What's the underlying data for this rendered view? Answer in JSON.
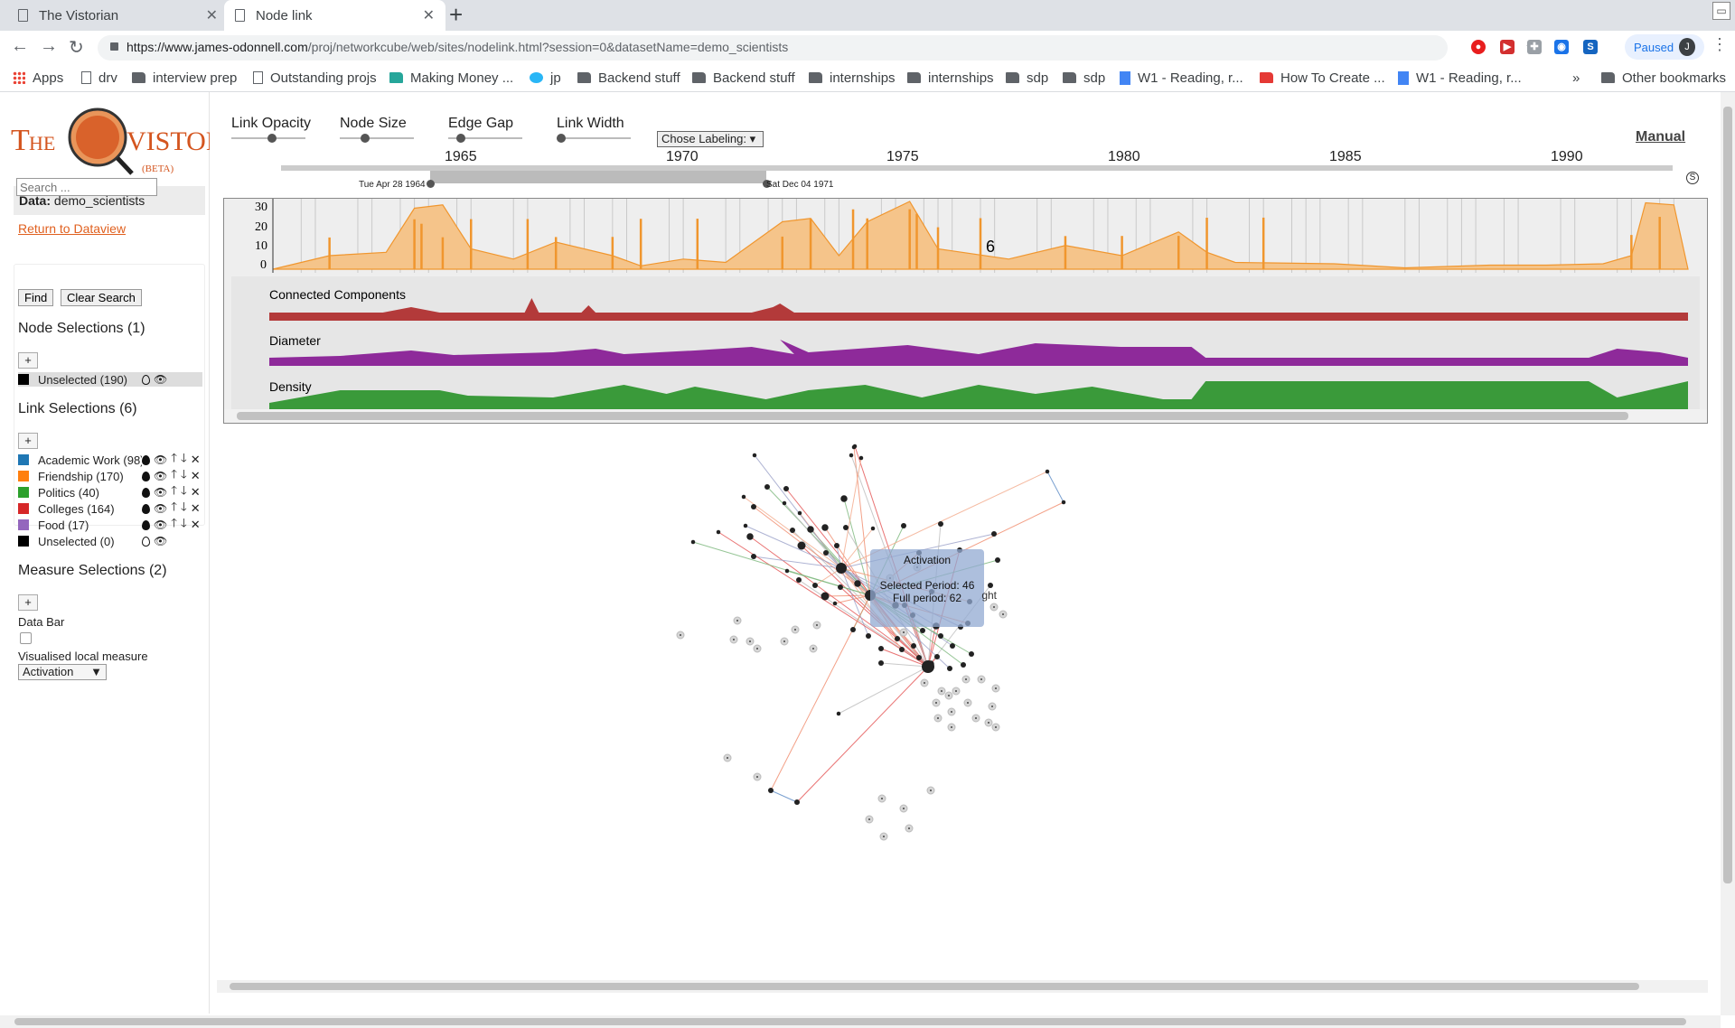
{
  "browser": {
    "tabs": [
      {
        "label": "The Vistorian",
        "active": false
      },
      {
        "label": "Node link",
        "active": true
      }
    ],
    "url_host": "https://www.james-odonnell.com",
    "url_path": "/proj/networkcube/web/sites/nodelink.html?session=0&datasetName=demo_scientists",
    "profile_status": "Paused",
    "profile_initial": "J",
    "bookmarks": [
      "Apps",
      "drv",
      "interview prep",
      "Outstanding projs",
      "Making Money ...",
      "jp",
      "Backend stuff",
      "Backend stuff",
      "internships",
      "internships",
      "sdp",
      "sdp",
      "W1 - Reading, r...",
      "How To Create ...",
      "W1 - Reading, r..."
    ],
    "bookmarks_more": "»",
    "other_bookmarks": "Other bookmarks"
  },
  "sidebar": {
    "logo_text": "THE VISTORIAN",
    "logo_badge": "(BETA)",
    "data_label": "Data:",
    "data_value": "demo_scientists",
    "return_link": "Return to Dataview",
    "search_placeholder": "Search ...",
    "find_button": "Find",
    "clear_button": "Clear Search",
    "node_selections_title": "Node Selections (1)",
    "plus": "+",
    "node_selections": [
      {
        "label": "Unselected (190)",
        "color": "#000000"
      }
    ],
    "link_selections_title": "Link Selections (6)",
    "link_selections": [
      {
        "label": "Academic Work (98)",
        "color": "#1f77b4"
      },
      {
        "label": "Friendship (170)",
        "color": "#ff7f0e"
      },
      {
        "label": "Politics (40)",
        "color": "#2ca02c"
      },
      {
        "label": "Colleges (164)",
        "color": "#d62728"
      },
      {
        "label": "Food (17)",
        "color": "#9467bd"
      },
      {
        "label": "Unselected (0)",
        "color": "#000000"
      }
    ],
    "measure_selections_title": "Measure Selections (2)",
    "data_bar_label": "Data Bar",
    "visualised_label": "Visualised local measure",
    "visualised_value": "Activation"
  },
  "controls": {
    "sliders": [
      "Link Opacity",
      "Node Size",
      "Edge Gap",
      "Link Width"
    ],
    "labeling_select": "Chose Labeling:",
    "manual_link": "Manual",
    "years": [
      "1965",
      "1970",
      "1975",
      "1980",
      "1985",
      "1990"
    ],
    "range_start": "Tue Apr 28 1964",
    "range_end": "Sat Dec 04 1971",
    "settings_icon_glyph": "S"
  },
  "chart_data": [
    {
      "type": "area",
      "title": "",
      "y_ticks": [
        "30",
        "20",
        "10",
        "0"
      ],
      "ylim": [
        0,
        30
      ],
      "hover_value": "6",
      "color": "#f5a94e"
    },
    {
      "type": "area",
      "title": "Connected Components",
      "color": "#b33a3a"
    },
    {
      "type": "area",
      "title": "Diameter",
      "color": "#8e2a9a"
    },
    {
      "type": "area",
      "title": "Density",
      "color": "#3a9a3a"
    }
  ],
  "tooltip": {
    "title": "Activation",
    "selected_period": "Selected Period: 46",
    "full_period": "Full period: 62",
    "suffix": "ght"
  }
}
